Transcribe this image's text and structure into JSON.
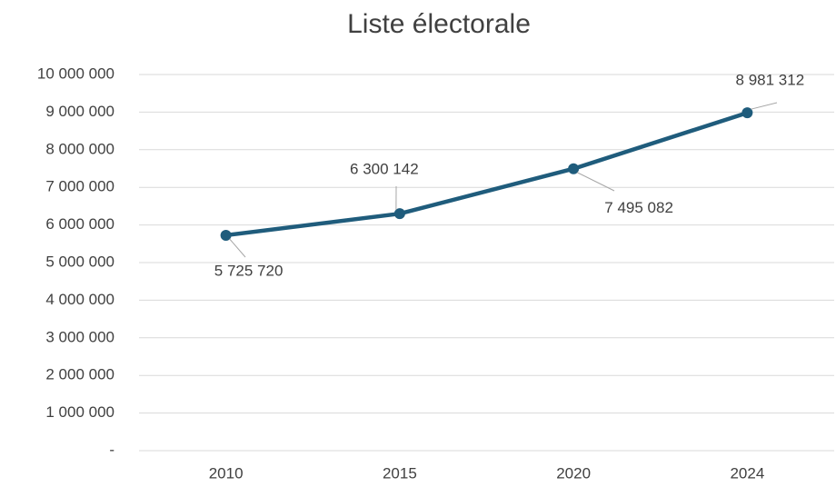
{
  "chart_data": {
    "type": "line",
    "title": "Liste électorale",
    "categories": [
      "2010",
      "2015",
      "2020",
      "2024"
    ],
    "series": [
      {
        "name": "Liste électorale",
        "color": "#1f5c7c",
        "values": [
          5725720,
          6300142,
          7495082,
          8981312
        ],
        "value_labels": [
          "5 725 720",
          "6 300 142",
          "7 495 082",
          "8 981 312"
        ]
      }
    ],
    "ylim": [
      0,
      10000000
    ],
    "yticks": [
      {
        "value": 0,
        "label": "-"
      },
      {
        "value": 1000000,
        "label": "1 000 000"
      },
      {
        "value": 2000000,
        "label": "2 000 000"
      },
      {
        "value": 3000000,
        "label": "3 000 000"
      },
      {
        "value": 4000000,
        "label": "4 000 000"
      },
      {
        "value": 5000000,
        "label": "5 000 000"
      },
      {
        "value": 6000000,
        "label": "6 000 000"
      },
      {
        "value": 7000000,
        "label": "7 000 000"
      },
      {
        "value": 8000000,
        "label": "8 000 000"
      },
      {
        "value": 9000000,
        "label": "9 000 000"
      },
      {
        "value": 10000000,
        "label": "10 000 000"
      }
    ],
    "grid": true
  }
}
